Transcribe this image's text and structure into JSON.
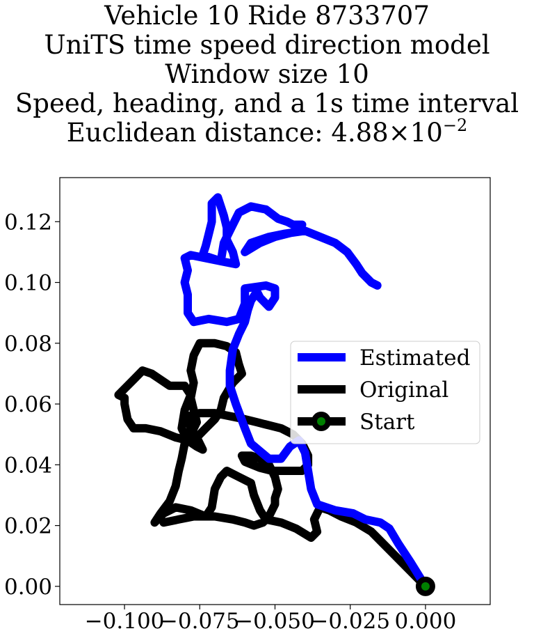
{
  "chart_data": {
    "type": "line",
    "title_lines": [
      "Vehicle 10 Ride 8733707",
      "UniTS time speed direction model",
      "Window size 10",
      "Speed, heading, and a 1s time interval"
    ],
    "title_distance_prefix": "Euclidean distance: 4.88",
    "title_distance_times": "×",
    "title_distance_base": "10",
    "title_distance_exponent": "−2",
    "xlabel": "",
    "ylabel": "",
    "xlim": [
      -0.1215,
      0.0215
    ],
    "ylim": [
      -0.006,
      0.1345
    ],
    "x_ticks": [
      -0.1,
      -0.075,
      -0.05,
      -0.025,
      0.0
    ],
    "x_tick_labels": [
      "−0.100",
      "−0.075",
      "−0.050",
      "−0.025",
      "0.000"
    ],
    "y_ticks": [
      0.0,
      0.02,
      0.04,
      0.06,
      0.08,
      0.1,
      0.12
    ],
    "y_tick_labels": [
      "0.00",
      "0.02",
      "0.04",
      "0.06",
      "0.08",
      "0.10",
      "0.12"
    ],
    "grid": false,
    "legend_position": "center-right",
    "series": [
      {
        "name": "Estimated",
        "color": "#0000ff",
        "points": [
          [
            0.0,
            0.0
          ],
          [
            -0.005,
            0.008
          ],
          [
            -0.009,
            0.014
          ],
          [
            -0.012,
            0.019
          ],
          [
            -0.015,
            0.021
          ],
          [
            -0.02,
            0.022
          ],
          [
            -0.024,
            0.024
          ],
          [
            -0.03,
            0.025
          ],
          [
            -0.036,
            0.027
          ],
          [
            -0.038,
            0.032
          ],
          [
            -0.039,
            0.038
          ],
          [
            -0.04,
            0.044
          ],
          [
            -0.042,
            0.048
          ],
          [
            -0.045,
            0.046
          ],
          [
            -0.048,
            0.042
          ],
          [
            -0.052,
            0.042
          ],
          [
            -0.058,
            0.047
          ],
          [
            -0.06,
            0.052
          ],
          [
            -0.063,
            0.06
          ],
          [
            -0.065,
            0.066
          ],
          [
            -0.065,
            0.071
          ],
          [
            -0.064,
            0.078
          ],
          [
            -0.062,
            0.083
          ],
          [
            -0.06,
            0.087
          ],
          [
            -0.059,
            0.091
          ],
          [
            -0.058,
            0.094
          ],
          [
            -0.056,
            0.097
          ],
          [
            -0.055,
            0.095
          ],
          [
            -0.052,
            0.092
          ],
          [
            -0.05,
            0.095
          ],
          [
            -0.05,
            0.098
          ],
          [
            -0.053,
            0.099
          ],
          [
            -0.06,
            0.098
          ],
          [
            -0.06,
            0.093
          ],
          [
            -0.062,
            0.088
          ],
          [
            -0.066,
            0.087
          ],
          [
            -0.072,
            0.088
          ],
          [
            -0.077,
            0.087
          ],
          [
            -0.079,
            0.09
          ],
          [
            -0.079,
            0.096
          ],
          [
            -0.08,
            0.1
          ],
          [
            -0.079,
            0.104
          ],
          [
            -0.08,
            0.108
          ],
          [
            -0.078,
            0.109
          ],
          [
            -0.073,
            0.108
          ],
          [
            -0.068,
            0.107
          ],
          [
            -0.063,
            0.106
          ],
          [
            -0.064,
            0.11
          ],
          [
            -0.066,
            0.114
          ],
          [
            -0.066,
            0.118
          ],
          [
            -0.067,
            0.122
          ],
          [
            -0.068,
            0.125
          ],
          [
            -0.069,
            0.128
          ],
          [
            -0.071,
            0.126
          ],
          [
            -0.071,
            0.12
          ],
          [
            -0.072,
            0.116
          ],
          [
            -0.073,
            0.112
          ],
          [
            -0.074,
            0.109
          ],
          [
            -0.068,
            0.107
          ],
          [
            -0.067,
            0.113
          ],
          [
            -0.064,
            0.119
          ],
          [
            -0.062,
            0.123
          ],
          [
            -0.058,
            0.125
          ],
          [
            -0.053,
            0.124
          ],
          [
            -0.049,
            0.121
          ],
          [
            -0.046,
            0.12
          ],
          [
            -0.044,
            0.119
          ],
          [
            -0.041,
            0.119
          ],
          [
            -0.042,
            0.117
          ],
          [
            -0.046,
            0.116
          ],
          [
            -0.05,
            0.115
          ],
          [
            -0.055,
            0.113
          ],
          [
            -0.06,
            0.11
          ],
          [
            -0.058,
            0.113
          ],
          [
            -0.052,
            0.115
          ],
          [
            -0.047,
            0.116
          ],
          [
            -0.04,
            0.117
          ],
          [
            -0.035,
            0.115
          ],
          [
            -0.03,
            0.113
          ],
          [
            -0.026,
            0.11
          ],
          [
            -0.023,
            0.106
          ],
          [
            -0.021,
            0.103
          ],
          [
            -0.018,
            0.1
          ],
          [
            -0.016,
            0.099
          ]
        ]
      },
      {
        "name": "Original",
        "color": "#000000",
        "points": [
          [
            0.0,
            0.0
          ],
          [
            -0.006,
            0.006
          ],
          [
            -0.011,
            0.011
          ],
          [
            -0.015,
            0.015
          ],
          [
            -0.018,
            0.018
          ],
          [
            -0.023,
            0.021
          ],
          [
            -0.028,
            0.023
          ],
          [
            -0.032,
            0.025
          ],
          [
            -0.035,
            0.026
          ],
          [
            -0.037,
            0.022
          ],
          [
            -0.036,
            0.018
          ],
          [
            -0.038,
            0.016
          ],
          [
            -0.043,
            0.019
          ],
          [
            -0.048,
            0.021
          ],
          [
            -0.053,
            0.022
          ],
          [
            -0.055,
            0.025
          ],
          [
            -0.057,
            0.03
          ],
          [
            -0.058,
            0.034
          ],
          [
            -0.062,
            0.036
          ],
          [
            -0.066,
            0.038
          ],
          [
            -0.068,
            0.036
          ],
          [
            -0.07,
            0.032
          ],
          [
            -0.071,
            0.026
          ],
          [
            -0.073,
            0.023
          ],
          [
            -0.078,
            0.025
          ],
          [
            -0.083,
            0.026
          ],
          [
            -0.087,
            0.024
          ],
          [
            -0.09,
            0.021
          ],
          [
            -0.088,
            0.024
          ],
          [
            -0.085,
            0.028
          ],
          [
            -0.083,
            0.033
          ],
          [
            -0.082,
            0.038
          ],
          [
            -0.081,
            0.042
          ],
          [
            -0.08,
            0.047
          ],
          [
            -0.078,
            0.05
          ],
          [
            -0.076,
            0.054
          ],
          [
            -0.077,
            0.058
          ],
          [
            -0.078,
            0.062
          ],
          [
            -0.077,
            0.067
          ],
          [
            -0.078,
            0.071
          ],
          [
            -0.077,
            0.076
          ],
          [
            -0.075,
            0.08
          ],
          [
            -0.07,
            0.08
          ],
          [
            -0.066,
            0.079
          ],
          [
            -0.063,
            0.077
          ],
          [
            -0.062,
            0.073
          ],
          [
            -0.061,
            0.07
          ],
          [
            -0.064,
            0.067
          ],
          [
            -0.067,
            0.062
          ],
          [
            -0.068,
            0.058
          ],
          [
            -0.07,
            0.055
          ],
          [
            -0.073,
            0.052
          ],
          [
            -0.076,
            0.049
          ],
          [
            -0.079,
            0.048
          ],
          [
            -0.083,
            0.049
          ],
          [
            -0.088,
            0.051
          ],
          [
            -0.093,
            0.052
          ],
          [
            -0.097,
            0.052
          ],
          [
            -0.099,
            0.055
          ],
          [
            -0.1,
            0.06
          ],
          [
            -0.1,
            0.062
          ],
          [
            -0.102,
            0.063
          ],
          [
            -0.1,
            0.065
          ],
          [
            -0.097,
            0.068
          ],
          [
            -0.094,
            0.071
          ],
          [
            -0.091,
            0.07
          ],
          [
            -0.088,
            0.068
          ],
          [
            -0.085,
            0.066
          ],
          [
            -0.08,
            0.066
          ],
          [
            -0.078,
            0.063
          ],
          [
            -0.08,
            0.058
          ],
          [
            -0.081,
            0.052
          ],
          [
            -0.079,
            0.048
          ],
          [
            -0.076,
            0.046
          ],
          [
            -0.074,
            0.045
          ],
          [
            -0.076,
            0.049
          ],
          [
            -0.078,
            0.052
          ],
          [
            -0.079,
            0.056
          ],
          [
            -0.075,
            0.057
          ],
          [
            -0.07,
            0.057
          ],
          [
            -0.065,
            0.056
          ],
          [
            -0.06,
            0.055
          ],
          [
            -0.056,
            0.054
          ],
          [
            -0.052,
            0.053
          ],
          [
            -0.048,
            0.052
          ],
          [
            -0.044,
            0.05
          ],
          [
            -0.041,
            0.047
          ],
          [
            -0.039,
            0.043
          ],
          [
            -0.039,
            0.04
          ],
          [
            -0.041,
            0.038
          ],
          [
            -0.046,
            0.038
          ],
          [
            -0.051,
            0.038
          ],
          [
            -0.055,
            0.039
          ],
          [
            -0.06,
            0.041
          ],
          [
            -0.061,
            0.043
          ],
          [
            -0.058,
            0.043
          ],
          [
            -0.055,
            0.042
          ],
          [
            -0.052,
            0.04
          ],
          [
            -0.05,
            0.036
          ],
          [
            -0.049,
            0.032
          ],
          [
            -0.05,
            0.029
          ],
          [
            -0.05,
            0.027
          ],
          [
            -0.052,
            0.023
          ],
          [
            -0.054,
            0.021
          ],
          [
            -0.057,
            0.02
          ],
          [
            -0.06,
            0.021
          ],
          [
            -0.064,
            0.022
          ],
          [
            -0.07,
            0.023
          ],
          [
            -0.073,
            0.023
          ],
          [
            -0.077,
            0.023
          ],
          [
            -0.082,
            0.022
          ],
          [
            -0.087,
            0.021
          ]
        ]
      }
    ],
    "start_point": {
      "name": "Start",
      "x": 0.0,
      "y": 0.0,
      "marker_face": "#008000",
      "marker_edge": "#000000"
    }
  }
}
